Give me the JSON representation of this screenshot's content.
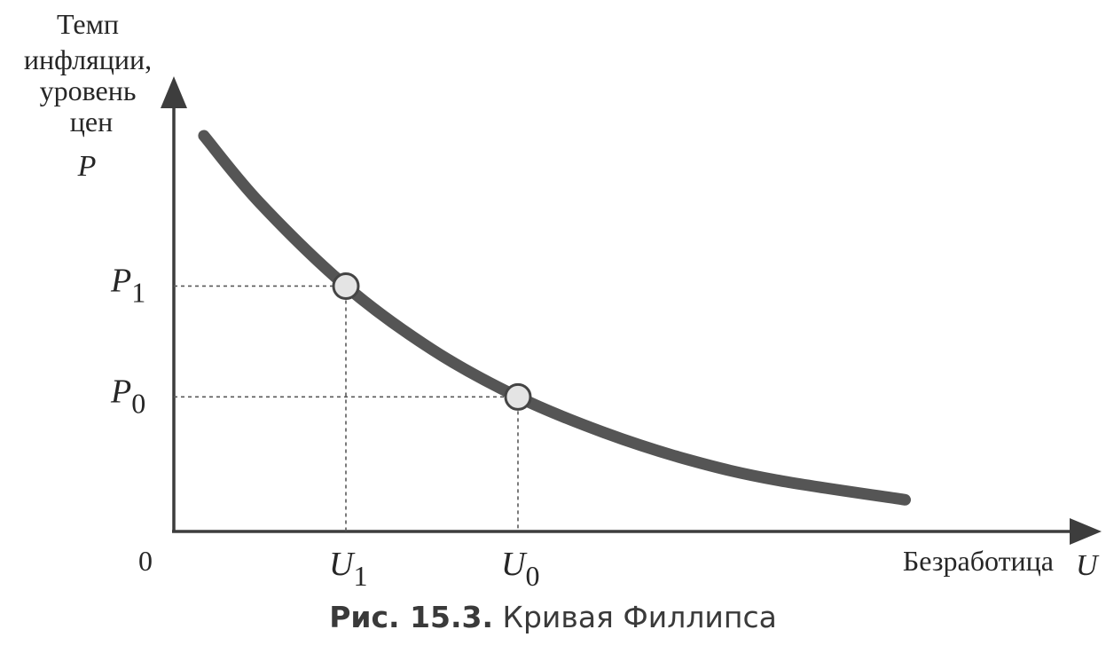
{
  "chart_data": {
    "type": "line",
    "title": "",
    "ylabel_lines": [
      "Темп",
      "инфляции,",
      "уровень",
      "цен"
    ],
    "ylabel_symbol": "P",
    "xlabel": "Безработица",
    "xlabel_symbol": "U",
    "origin_label": "0",
    "curve_label": "Кривая Филлипса",
    "series": [
      {
        "x": [
          0.35,
          1.0,
          2.0,
          3.0,
          4.0,
          5.0,
          6.0,
          7.0,
          8.5
        ],
        "y": [
          10.0,
          8.3,
          6.2,
          4.6,
          3.4,
          2.5,
          1.8,
          1.3,
          0.8
        ]
      }
    ],
    "points": [
      {
        "x": 2.0,
        "y": 6.2,
        "xlabel": "U",
        "xsub": "1",
        "ylabel": "P",
        "ysub": "1"
      },
      {
        "x": 4.0,
        "y": 3.4,
        "xlabel": "U",
        "xsub": "0",
        "ylabel": "P",
        "ysub": "0"
      }
    ],
    "xlim": [
      0,
      11
    ],
    "ylim": [
      0,
      11
    ],
    "grid": false
  },
  "caption": {
    "number": "Рис. 15.3.",
    "text": "Кривая Филлипса"
  }
}
